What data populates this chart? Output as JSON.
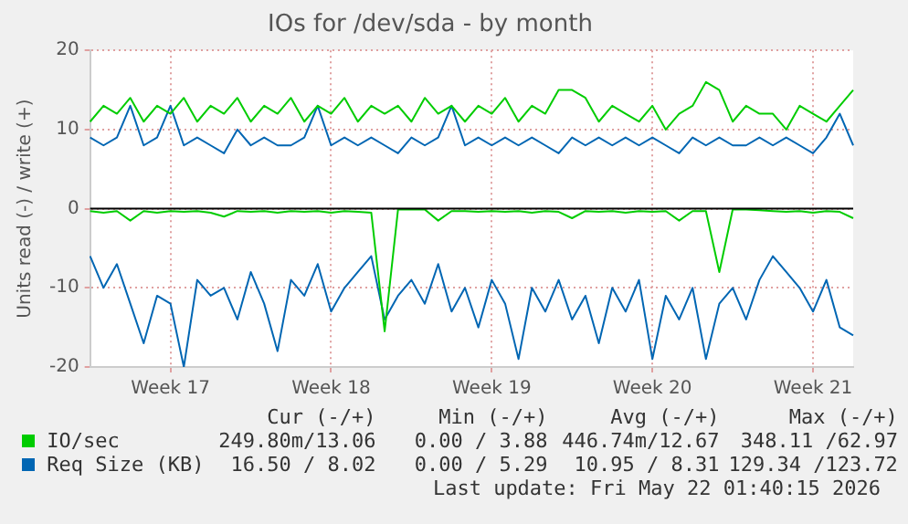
{
  "chart_data": {
    "type": "line",
    "title": "IOs for /dev/sda - by month",
    "ylabel": "Units read (-) / write (+)",
    "categories": [
      null,
      null,
      null,
      null,
      null,
      null,
      "Week 17",
      null,
      null,
      null,
      null,
      null,
      null,
      null,
      null,
      null,
      null,
      null,
      "Week 18",
      null,
      null,
      null,
      null,
      null,
      null,
      null,
      null,
      null,
      null,
      null,
      "Week 19",
      null,
      null,
      null,
      null,
      null,
      null,
      null,
      null,
      null,
      null,
      null,
      "Week 20",
      null,
      null,
      null,
      null,
      null,
      null,
      null,
      null,
      null,
      null,
      null,
      "Week 21",
      null,
      null,
      null
    ],
    "series": [
      {
        "name": "IO/sec",
        "color": "#00cc00",
        "values": [
          11,
          13,
          12,
          14,
          11,
          13,
          12,
          14,
          11,
          13,
          12,
          14,
          11,
          13,
          12,
          14,
          11,
          13,
          12,
          14,
          11,
          13,
          12,
          13,
          11,
          14,
          12,
          13,
          11,
          13,
          12,
          14,
          11,
          13,
          12,
          15,
          15,
          14,
          11,
          13,
          12,
          11,
          13,
          10,
          12,
          13,
          16,
          15,
          11,
          13,
          12,
          12,
          10,
          13,
          12,
          11,
          13,
          15
        ]
      },
      {
        "color": "#00cc00",
        "values": [
          -0.3,
          -0.5,
          -0.3,
          -1.5,
          -0.3,
          -0.5,
          -0.3,
          -0.4,
          -0.3,
          -0.5,
          -1,
          -0.3,
          -0.4,
          -0.3,
          -0.5,
          -0.3,
          -0.4,
          -0.3,
          -0.5,
          -0.3,
          -0.4,
          -0.5,
          -15.5,
          -0.1,
          -0.1,
          -0.1,
          -1.5,
          -0.3,
          -0.3,
          -0.4,
          -0.3,
          -0.4,
          -0.3,
          -0.5,
          -0.3,
          -0.4,
          -1.2,
          -0.3,
          -0.4,
          -0.3,
          -0.5,
          -0.3,
          -0.4,
          -0.3,
          -1.5,
          -0.3,
          -0.3,
          -8,
          -0.1,
          -0.1,
          -0.2,
          -0.3,
          -0.4,
          -0.3,
          -0.5,
          -0.3,
          -0.4,
          -1.2
        ]
      },
      {
        "name": "Req Size (KB)",
        "color": "#0066b3",
        "values": [
          9,
          8,
          9,
          13,
          8,
          9,
          13,
          8,
          9,
          8,
          7,
          10,
          8,
          9,
          8,
          8,
          9,
          13,
          8,
          9,
          8,
          9,
          8,
          7,
          9,
          8,
          9,
          13,
          8,
          9,
          8,
          9,
          8,
          9,
          8,
          7,
          9,
          8,
          9,
          8,
          9,
          8,
          9,
          8,
          7,
          9,
          8,
          9,
          8,
          8,
          9,
          8,
          9,
          8,
          7,
          9,
          12,
          8
        ]
      },
      {
        "color": "#0066b3",
        "values": [
          -6,
          -10,
          -7,
          -12,
          -17,
          -11,
          -12,
          -20,
          -9,
          -11,
          -10,
          -14,
          -8,
          -12,
          -18,
          -9,
          -11,
          -7,
          -13,
          -10,
          -8,
          -6,
          -14,
          -11,
          -9,
          -12,
          -7,
          -13,
          -10,
          -15,
          -9,
          -12,
          -19,
          -10,
          -13,
          -9,
          -14,
          -11,
          -17,
          -10,
          -13,
          -9,
          -19,
          -11,
          -14,
          -10,
          -19,
          -12,
          -10,
          -14,
          -9,
          -6,
          -8,
          -10,
          -13,
          -9,
          -15,
          -16
        ]
      }
    ],
    "ylim": [
      -20,
      20
    ],
    "yticks": [
      -20,
      -10,
      0,
      10,
      20
    ],
    "ref_lines": [
      {
        "axis": "y",
        "value": 0,
        "color": "#000000"
      }
    ],
    "grid": true,
    "legend": "bottom",
    "marker": "none",
    "line_style": "solid",
    "annotations": [
      "Cur (-/+)",
      "Min (-/+)",
      "Avg (-/+)",
      "Max (-/+)",
      "249.80m/13.06",
      "0.00 / 3.88",
      "446.74m/12.67",
      "348.11 /62.97",
      "16.50 / 8.02",
      "0.00 / 5.29",
      "10.95 / 8.31",
      "129.34 /123.72",
      "Last update: Fri May 22 01:40:15 2026"
    ]
  }
}
